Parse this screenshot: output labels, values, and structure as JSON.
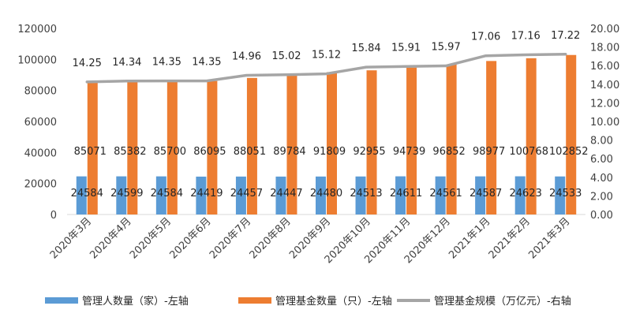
{
  "chart_data": {
    "type": "bar",
    "categories": [
      "2020年3月",
      "2020年4月",
      "2020年5月",
      "2020年6月",
      "2020年7月",
      "2020年8月",
      "2020年9月",
      "2020年10月",
      "2020年11月",
      "2020年12月",
      "2021年1月",
      "2021年2月",
      "2021年3月"
    ],
    "series": [
      {
        "name": "管理人数量（家）-左轴",
        "type": "bar",
        "axis": "left",
        "color": "#5B9BD5",
        "values": [
          24584,
          24599,
          24584,
          24419,
          24457,
          24447,
          24480,
          24513,
          24611,
          24561,
          24587,
          24623,
          24533
        ]
      },
      {
        "name": "管理基金数量（只）-左轴",
        "type": "bar",
        "axis": "left",
        "color": "#ED7D31",
        "values": [
          85071,
          85382,
          85700,
          86095,
          88051,
          89784,
          91809,
          92955,
          94739,
          96852,
          98977,
          100768,
          102852
        ]
      },
      {
        "name": "管理基金规模（万亿元）-右轴",
        "type": "line",
        "axis": "right",
        "color": "#A5A5A5",
        "values": [
          14.25,
          14.34,
          14.35,
          14.35,
          14.96,
          15.02,
          15.12,
          15.84,
          15.91,
          15.97,
          17.06,
          17.16,
          17.22
        ]
      }
    ],
    "y_left": {
      "min": 0,
      "max": 120000,
      "step": 20000,
      "ticks": [
        "0",
        "20000",
        "40000",
        "60000",
        "80000",
        "100000",
        "120000"
      ]
    },
    "y_right": {
      "min": 0,
      "max": 20,
      "step": 2,
      "ticks": [
        "0.00",
        "2.00",
        "4.00",
        "6.00",
        "8.00",
        "10.00",
        "12.00",
        "14.00",
        "16.00",
        "18.00",
        "20.00"
      ]
    },
    "line_labels": [
      "14.25",
      "14.34",
      "14.35",
      "14.35",
      "14.96",
      "15.02",
      "15.12",
      "15.84",
      "15.91",
      "15.97",
      "17.06",
      "17.16",
      "17.22"
    ],
    "grid": false,
    "legend_position": "bottom"
  }
}
